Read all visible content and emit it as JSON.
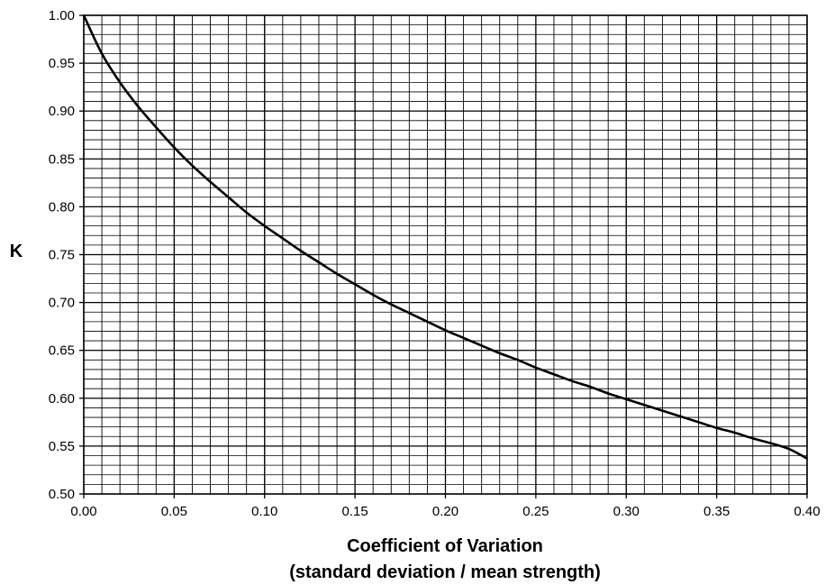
{
  "chart_data": {
    "type": "line",
    "title": "",
    "xlabel": "Coefficient of Variation",
    "xlabel_line2": "(standard deviation / mean strength)",
    "ylabel": "K",
    "xlim": [
      0.0,
      0.4
    ],
    "ylim": [
      0.5,
      1.0
    ],
    "x_ticks": [
      "0.00",
      "0.05",
      "0.10",
      "0.15",
      "0.20",
      "0.25",
      "0.30",
      "0.35",
      "0.40"
    ],
    "y_ticks": [
      "0.50",
      "0.55",
      "0.60",
      "0.65",
      "0.70",
      "0.75",
      "0.80",
      "0.85",
      "0.90",
      "0.95",
      "1.00"
    ],
    "grid": true,
    "grid_minor_x": 0.01,
    "grid_minor_y": 0.01,
    "legend": "none",
    "line_color": "#000000",
    "grid_color": "#000000",
    "series": [
      {
        "x": [
          0.0,
          0.01,
          0.02,
          0.03,
          0.04,
          0.05,
          0.06,
          0.07,
          0.08,
          0.09,
          0.1,
          0.11,
          0.12,
          0.13,
          0.14,
          0.15,
          0.16,
          0.17,
          0.18,
          0.19,
          0.2,
          0.21,
          0.22,
          0.23,
          0.24,
          0.25,
          0.26,
          0.27,
          0.28,
          0.29,
          0.3,
          0.31,
          0.32,
          0.33,
          0.34,
          0.35,
          0.36,
          0.37,
          0.38,
          0.39,
          0.4
        ],
        "y": [
          1.0,
          0.96,
          0.93,
          0.905,
          0.883,
          0.862,
          0.843,
          0.826,
          0.81,
          0.794,
          0.78,
          0.767,
          0.754,
          0.742,
          0.73,
          0.719,
          0.708,
          0.698,
          0.689,
          0.68,
          0.671,
          0.663,
          0.655,
          0.647,
          0.64,
          0.632,
          0.625,
          0.618,
          0.612,
          0.605,
          0.599,
          0.593,
          0.587,
          0.581,
          0.575,
          0.569,
          0.564,
          0.558,
          0.553,
          0.547,
          0.537
        ]
      }
    ]
  }
}
